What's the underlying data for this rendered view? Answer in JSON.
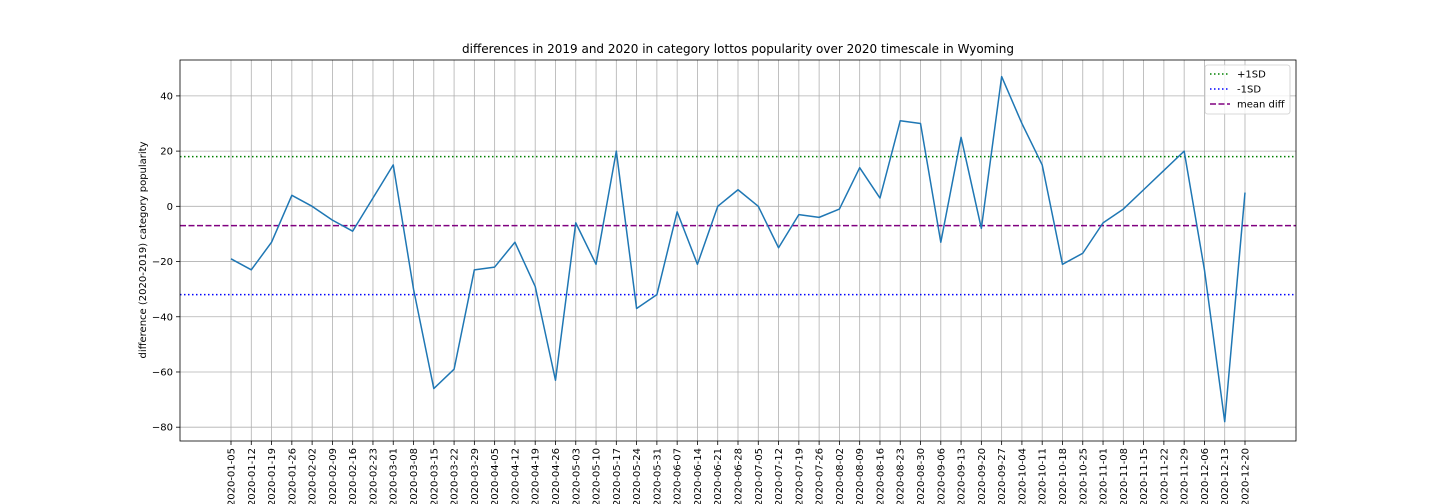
{
  "chart_data": {
    "type": "line",
    "title": "differences in 2019 and 2020 in category lottos popularity over 2020 timescale in Wyoming",
    "xlabel": "",
    "ylabel": "difference (2020-2019) category popularity",
    "ylim": [
      -85,
      53
    ],
    "yticks": [
      -80,
      -60,
      -40,
      -20,
      0,
      20,
      40
    ],
    "grid": true,
    "legend_position": "top-right",
    "categories": [
      "2020-01-05",
      "2020-01-12",
      "2020-01-19",
      "2020-01-26",
      "2020-02-02",
      "2020-02-09",
      "2020-02-16",
      "2020-02-23",
      "2020-03-01",
      "2020-03-08",
      "2020-03-15",
      "2020-03-22",
      "2020-03-29",
      "2020-04-05",
      "2020-04-12",
      "2020-04-19",
      "2020-04-26",
      "2020-05-03",
      "2020-05-10",
      "2020-05-17",
      "2020-05-24",
      "2020-05-31",
      "2020-06-07",
      "2020-06-14",
      "2020-06-21",
      "2020-06-28",
      "2020-07-05",
      "2020-07-12",
      "2020-07-19",
      "2020-07-26",
      "2020-08-02",
      "2020-08-09",
      "2020-08-16",
      "2020-08-23",
      "2020-08-30",
      "2020-09-06",
      "2020-09-13",
      "2020-09-20",
      "2020-09-27",
      "2020-10-04",
      "2020-10-11",
      "2020-10-18",
      "2020-10-25",
      "2020-11-01",
      "2020-11-08",
      "2020-11-15",
      "2020-11-22",
      "2020-11-29",
      "2020-12-06",
      "2020-12-13",
      "2020-12-20"
    ],
    "series": [
      {
        "color": "#1f77b4",
        "values": [
          -19,
          -23,
          -13,
          4,
          0,
          -5,
          -9,
          3,
          15,
          -30,
          -66,
          -59,
          -23,
          -22,
          -13,
          -29,
          -63,
          -6,
          -21,
          20,
          -37,
          -32,
          -2,
          -21,
          0,
          6,
          0,
          -15,
          -3,
          -4,
          -1,
          14,
          3,
          31,
          30,
          -13,
          25,
          -8,
          47,
          30,
          15,
          -21,
          -17,
          -6,
          -1,
          6,
          13,
          20,
          -23,
          -78,
          5
        ]
      }
    ],
    "reference_lines": [
      {
        "name": "+1SD",
        "value": 18,
        "color": "#008000",
        "style": "dotted"
      },
      {
        "name": "-1SD",
        "value": -32,
        "color": "#0000ff",
        "style": "dotted"
      },
      {
        "name": "mean diff",
        "value": -7,
        "color": "#800080",
        "style": "dashed"
      }
    ]
  }
}
